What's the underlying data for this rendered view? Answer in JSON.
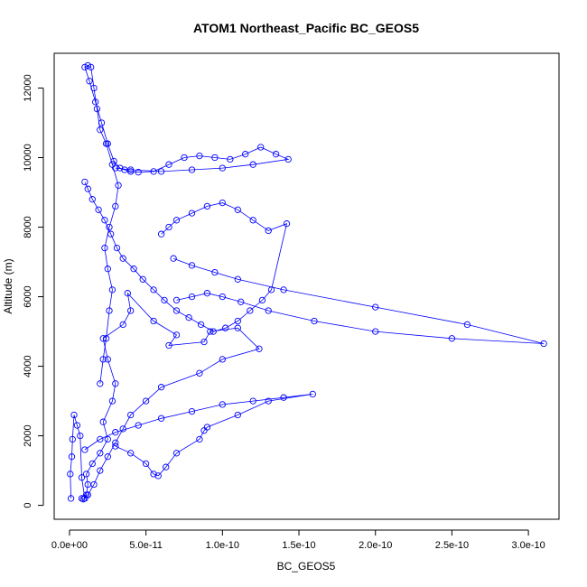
{
  "chart_data": {
    "type": "line",
    "title": "ATOM1 Northeast_Pacific BC_GEOS5",
    "xlabel": "BC_GEOS5",
    "ylabel": "Altitude (m)",
    "xlim": [
      -1e-11,
      3.2e-10
    ],
    "ylim": [
      -400,
      13000
    ],
    "x_ticks": [
      0,
      5e-11,
      1e-10,
      1.5e-10,
      2e-10,
      2.5e-10,
      3e-10
    ],
    "x_tick_labels": [
      "0.0e+00",
      "5.0e-11",
      "1.0e-10",
      "1.5e-10",
      "2.0e-10",
      "2.5e-10",
      "3.0e-10"
    ],
    "y_ticks": [
      0,
      2000,
      4000,
      6000,
      8000,
      10000,
      12000
    ],
    "y_tick_labels": [
      "0",
      "2000",
      "4000",
      "6000",
      "8000",
      "10000",
      "12000"
    ],
    "grid": false,
    "series_color": "#0000ff",
    "series": [
      {
        "x": [
          1e-12,
          5e-13,
          1.5e-12,
          2e-12,
          3e-12,
          5e-12,
          7e-12,
          8e-12,
          1e-11,
          1.1e-11,
          1.2e-11,
          1.1e-11,
          1.5e-11,
          2e-11,
          2.5e-11,
          2.2e-11,
          2.8e-11,
          3e-11,
          2.5e-11,
          2.2e-11,
          3.5e-11,
          4e-11,
          3.8e-11,
          5.5e-11,
          7e-11,
          6.5e-11,
          8.8e-11,
          9.2e-11,
          1.1e-10,
          1.24e-10,
          1e-10,
          8.5e-11,
          6e-11,
          5e-11,
          4e-11,
          3.5e-11,
          3e-11,
          2.5e-11,
          2e-11,
          1.6e-11,
          1.2e-11,
          1e-11,
          9e-12,
          8e-12
        ],
        "y": [
          200,
          900,
          1400,
          1900,
          2600,
          2300,
          2000,
          800,
          200,
          300,
          600,
          900,
          1200,
          1500,
          1900,
          2400,
          3000,
          3500,
          4200,
          4800,
          5200,
          5600,
          6100,
          5300,
          4900,
          4600,
          4700,
          5000,
          5100,
          4500,
          4200,
          3800,
          3400,
          3000,
          2600,
          2200,
          1800,
          1400,
          1000,
          600,
          300,
          200,
          180,
          200
        ]
      },
      {
        "x": [
          2e-11,
          2.2e-11,
          2.4e-11,
          2.6e-11,
          2.8e-11,
          2.5e-11,
          2.3e-11,
          2.6e-11,
          3e-11,
          3.2e-11,
          2.8e-11,
          2.4e-11,
          2e-11,
          1.8e-11,
          1.6e-11,
          1.4e-11,
          1.2e-11,
          1e-11,
          1.3e-11,
          1.7e-11,
          2.1e-11,
          2.5e-11,
          2.9e-11,
          3.3e-11,
          3.6e-11,
          4e-11,
          4.5e-11,
          5.5e-11,
          6.5e-11,
          7.5e-11,
          8.5e-11,
          9.5e-11,
          1.05e-10,
          1.15e-10,
          1.25e-10,
          1.35e-10,
          1.43e-10,
          1.2e-10,
          1e-10,
          8e-11,
          6e-11,
          4e-11,
          3e-11
        ],
        "y": [
          3500,
          4200,
          4800,
          5600,
          6200,
          6800,
          7400,
          8000,
          8600,
          9200,
          9800,
          10400,
          10800,
          11400,
          12000,
          12600,
          12650,
          12600,
          12200,
          11600,
          11000,
          10400,
          9900,
          9700,
          9650,
          9600,
          9580,
          9600,
          9800,
          10000,
          10050,
          10000,
          9950,
          10100,
          10300,
          10100,
          9950,
          9800,
          9700,
          9650,
          9600,
          9650,
          9700
        ]
      },
      {
        "x": [
          1e-11,
          1.2e-11,
          1.5e-11,
          1.9e-11,
          2.3e-11,
          2.7e-11,
          3.1e-11,
          3.5e-11,
          4.2e-11,
          4.8e-11,
          5.5e-11,
          6.2e-11,
          7e-11,
          7.8e-11,
          8.6e-11,
          9.4e-11,
          1.02e-10,
          1.1e-10,
          1.18e-10,
          1.26e-10,
          1.32e-10,
          1.42e-10,
          1.3e-10,
          1.2e-10,
          1.1e-10,
          1e-10,
          9e-11,
          8e-11,
          7e-11,
          6.5e-11,
          6e-11
        ],
        "y": [
          9300,
          9100,
          8800,
          8500,
          8200,
          7800,
          7400,
          7100,
          6800,
          6500,
          6200,
          5900,
          5600,
          5400,
          5200,
          5000,
          5100,
          5300,
          5600,
          5900,
          6200,
          8100,
          7900,
          8200,
          8500,
          8700,
          8600,
          8400,
          8200,
          8000,
          7800
        ]
      },
      {
        "x": [
          6.8e-11,
          8e-11,
          9.5e-11,
          1.1e-10,
          1.4e-10,
          2e-10,
          2.6e-10,
          3.1e-10,
          2.5e-10,
          2e-10,
          1.6e-10,
          1.3e-10,
          1.12e-10,
          1e-10,
          9e-11,
          8e-11,
          7e-11
        ],
        "y": [
          7100,
          6900,
          6700,
          6500,
          6200,
          5700,
          5200,
          4650,
          4800,
          5000,
          5300,
          5600,
          5850,
          6000,
          6100,
          6000,
          5900
        ]
      },
      {
        "x": [
          1e-11,
          2e-11,
          3e-11,
          4.5e-11,
          6e-11,
          8e-11,
          1e-10,
          1.2e-10,
          1.4e-10,
          1.59e-10,
          1.3e-10,
          1.1e-10,
          9e-11,
          8.8e-11,
          8.5e-11,
          7e-11,
          6.3e-11,
          5.8e-11,
          5.5e-11,
          5e-11,
          4e-11,
          3e-11
        ],
        "y": [
          1600,
          1900,
          2100,
          2300,
          2500,
          2700,
          2900,
          3000,
          3100,
          3200,
          3000,
          2600,
          2250,
          2150,
          1900,
          1500,
          1100,
          850,
          900,
          1200,
          1500,
          1700
        ]
      }
    ]
  }
}
